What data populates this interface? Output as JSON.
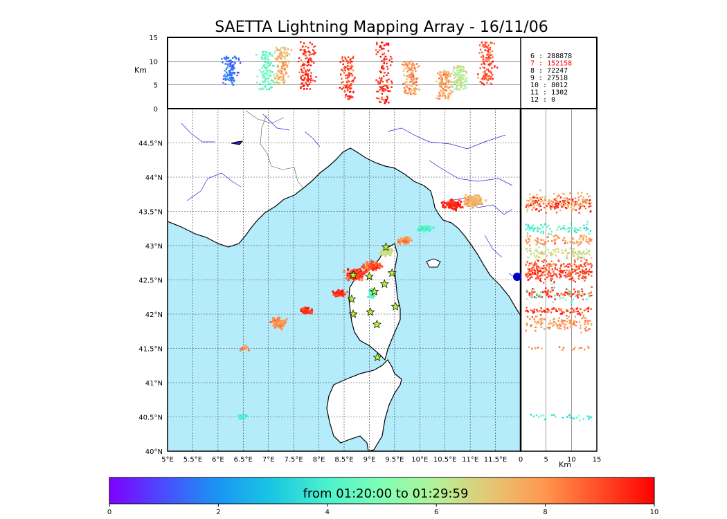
{
  "title": "SAETTA Lightning Mapping Array - 16/11/06",
  "colorbar": {
    "label": "from 01:20:00 to 01:29:59",
    "ticks": [
      0,
      2,
      4,
      6,
      8,
      10
    ],
    "colors": [
      "#7f00ff",
      "#4a4cfd",
      "#1996f3",
      "#1ac7e1",
      "#4cf2ce",
      "#80ffb4",
      "#b2f296",
      "#e6c674",
      "#ff964e",
      "#ff4c27",
      "#ff0000"
    ]
  },
  "counts": [
    {
      "label": "6  :   288878",
      "highlight": false
    },
    {
      "label": "7  :   152158",
      "highlight": true
    },
    {
      "label": "8  :    72247",
      "highlight": false
    },
    {
      "label": "9  :    27518",
      "highlight": false
    },
    {
      "label": "10 :     8012",
      "highlight": false
    },
    {
      "label": "11 :     1302",
      "highlight": false
    },
    {
      "label": "12 :        0",
      "highlight": false
    }
  ],
  "colors": {
    "sea": "#b5ecfb",
    "land": "#ffffff",
    "coast": "#000000",
    "rivers": "#2323d8",
    "borders": "#444444",
    "highlight": "#ff0000",
    "station": "#b6f22e"
  },
  "chart_data": {
    "type": "scatter",
    "map": {
      "lon_range": [
        5,
        12
      ],
      "lat_range": [
        40,
        45
      ],
      "lon_ticks": [
        "5°E",
        "5.5°E",
        "6°E",
        "6.5°E",
        "7°E",
        "7.5°E",
        "8°E",
        "8.5°E",
        "9°E",
        "9.5°E",
        "10°E",
        "10.5°E",
        "11°E",
        "11.5°E"
      ],
      "lat_ticks": [
        "40°N",
        "40.5°N",
        "41°N",
        "41.5°N",
        "42°N",
        "42.5°N",
        "43°N",
        "43.5°N",
        "44°N",
        "44.5°N"
      ],
      "grid": true
    },
    "altitude_time_panel": {
      "ylabel": "Km",
      "yrange": [
        0,
        15
      ],
      "yticks": [
        "0",
        "5",
        "10",
        "15"
      ]
    },
    "altitude_lat_panel": {
      "xlabel": "Km",
      "xrange": [
        0,
        15
      ],
      "xticks": [
        "0",
        "5",
        "10",
        "15"
      ]
    },
    "stations": [
      {
        "lon": 8.68,
        "lat": 42.57
      },
      {
        "lon": 9.0,
        "lat": 42.55
      },
      {
        "lon": 9.33,
        "lat": 42.98
      },
      {
        "lon": 9.45,
        "lat": 42.6
      },
      {
        "lon": 9.3,
        "lat": 42.44
      },
      {
        "lon": 9.1,
        "lat": 42.33
      },
      {
        "lon": 8.65,
        "lat": 42.22
      },
      {
        "lon": 9.52,
        "lat": 42.11
      },
      {
        "lon": 8.68,
        "lat": 42.0
      },
      {
        "lon": 9.02,
        "lat": 42.03
      },
      {
        "lon": 9.15,
        "lat": 41.85
      },
      {
        "lon": 9.16,
        "lat": 41.37
      }
    ],
    "lightning_clusters": [
      {
        "lon": 8.72,
        "lat": 42.58,
        "dlon": 0.28,
        "dlat": 0.1,
        "t": 9.2,
        "n": 140
      },
      {
        "lon": 9.05,
        "lat": 42.7,
        "dlon": 0.25,
        "dlat": 0.1,
        "t": 8.8,
        "n": 100
      },
      {
        "lon": 9.35,
        "lat": 42.9,
        "dlon": 0.2,
        "dlat": 0.08,
        "t": 6.5,
        "n": 80
      },
      {
        "lon": 9.7,
        "lat": 43.08,
        "dlon": 0.18,
        "dlat": 0.07,
        "t": 8.0,
        "n": 70
      },
      {
        "lon": 10.1,
        "lat": 43.25,
        "dlon": 0.2,
        "dlat": 0.07,
        "t": 4.2,
        "n": 60
      },
      {
        "lon": 8.4,
        "lat": 42.3,
        "dlon": 0.18,
        "dlat": 0.07,
        "t": 9.3,
        "n": 70
      },
      {
        "lon": 7.2,
        "lat": 41.87,
        "dlon": 0.22,
        "dlat": 0.1,
        "t": 8.0,
        "n": 100
      },
      {
        "lon": 7.75,
        "lat": 42.05,
        "dlon": 0.18,
        "dlat": 0.06,
        "t": 9.3,
        "n": 60
      },
      {
        "lon": 10.65,
        "lat": 43.6,
        "dlon": 0.25,
        "dlat": 0.1,
        "t": 9.5,
        "n": 90
      },
      {
        "lon": 11.05,
        "lat": 43.65,
        "dlon": 0.3,
        "dlat": 0.12,
        "t": 7.5,
        "n": 90
      },
      {
        "lon": 9.05,
        "lat": 42.3,
        "dlon": 0.12,
        "dlat": 0.12,
        "t": 4.5,
        "n": 30
      },
      {
        "lon": 6.5,
        "lat": 40.5,
        "dlon": 0.12,
        "dlat": 0.04,
        "t": 4.0,
        "n": 25
      },
      {
        "lon": 6.55,
        "lat": 41.5,
        "dlon": 0.12,
        "dlat": 0.05,
        "t": 8.0,
        "n": 15
      }
    ],
    "time_height_bands": [
      {
        "t": 0.2,
        "h": [
          5,
          11
        ],
        "c": 1.5
      },
      {
        "t": 1.5,
        "h": [
          4,
          12
        ],
        "c": 4.5
      },
      {
        "t": 2.1,
        "h": [
          5,
          13
        ],
        "c": 7.5
      },
      {
        "t": 3.0,
        "h": [
          4,
          14
        ],
        "c": 9.5
      },
      {
        "t": 4.5,
        "h": [
          2,
          11
        ],
        "c": 9.2
      },
      {
        "t": 5.8,
        "h": [
          1,
          14
        ],
        "c": 9.5
      },
      {
        "t": 6.8,
        "h": [
          3,
          10
        ],
        "c": 8.0
      },
      {
        "t": 8.0,
        "h": [
          2,
          8
        ],
        "c": 7.8
      },
      {
        "t": 8.6,
        "h": [
          4,
          9
        ],
        "c": 6.0
      },
      {
        "t": 9.6,
        "h": [
          5,
          14
        ],
        "c": 9.0
      }
    ]
  }
}
